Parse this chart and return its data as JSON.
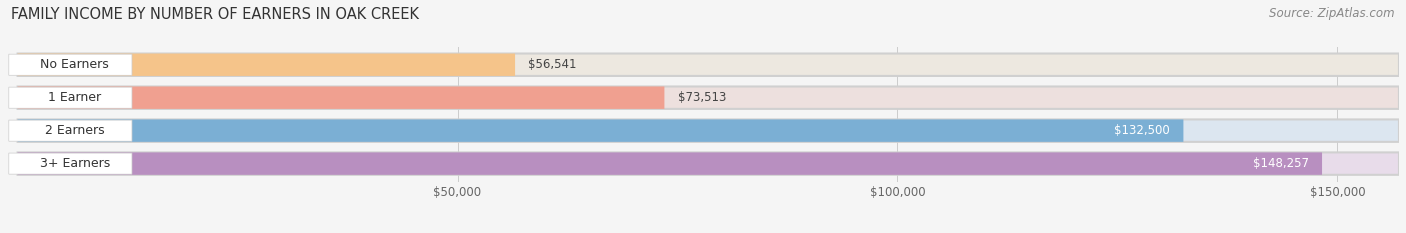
{
  "title": "FAMILY INCOME BY NUMBER OF EARNERS IN OAK CREEK",
  "source": "Source: ZipAtlas.com",
  "categories": [
    "No Earners",
    "1 Earner",
    "2 Earners",
    "3+ Earners"
  ],
  "values": [
    56541,
    73513,
    132500,
    148257
  ],
  "bar_colors": [
    "#f5c48a",
    "#f0a090",
    "#7bafd4",
    "#b88fc0"
  ],
  "bar_bg_colors": [
    "#ede8e0",
    "#ede0de",
    "#dce6f0",
    "#e8dcea"
  ],
  "value_label_colors": [
    "#555555",
    "#555555",
    "#ffffff",
    "#ffffff"
  ],
  "value_labels": [
    "$56,541",
    "$73,513",
    "$132,500",
    "$148,257"
  ],
  "x_ticks": [
    50000,
    100000,
    150000
  ],
  "x_tick_labels": [
    "$50,000",
    "$100,000",
    "$150,000"
  ],
  "xmin": 0,
  "xmax": 157000,
  "title_fontsize": 10.5,
  "source_fontsize": 8.5,
  "cat_fontsize": 9,
  "value_fontsize": 8.5,
  "tick_fontsize": 8.5,
  "background_color": "#f5f5f5",
  "bar_track_color": "#e8e8e8"
}
